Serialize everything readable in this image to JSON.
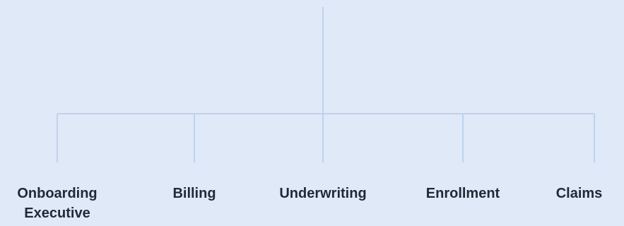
{
  "colors": {
    "background": "#dfe9f7",
    "connector": "#bdd2f0",
    "text": "#1f2a36"
  },
  "org_chart": {
    "children": [
      {
        "label": "Onboarding Executive"
      },
      {
        "label": "Billing"
      },
      {
        "label": "Underwriting"
      },
      {
        "label": "Enrollment"
      },
      {
        "label": "Claims"
      }
    ]
  }
}
